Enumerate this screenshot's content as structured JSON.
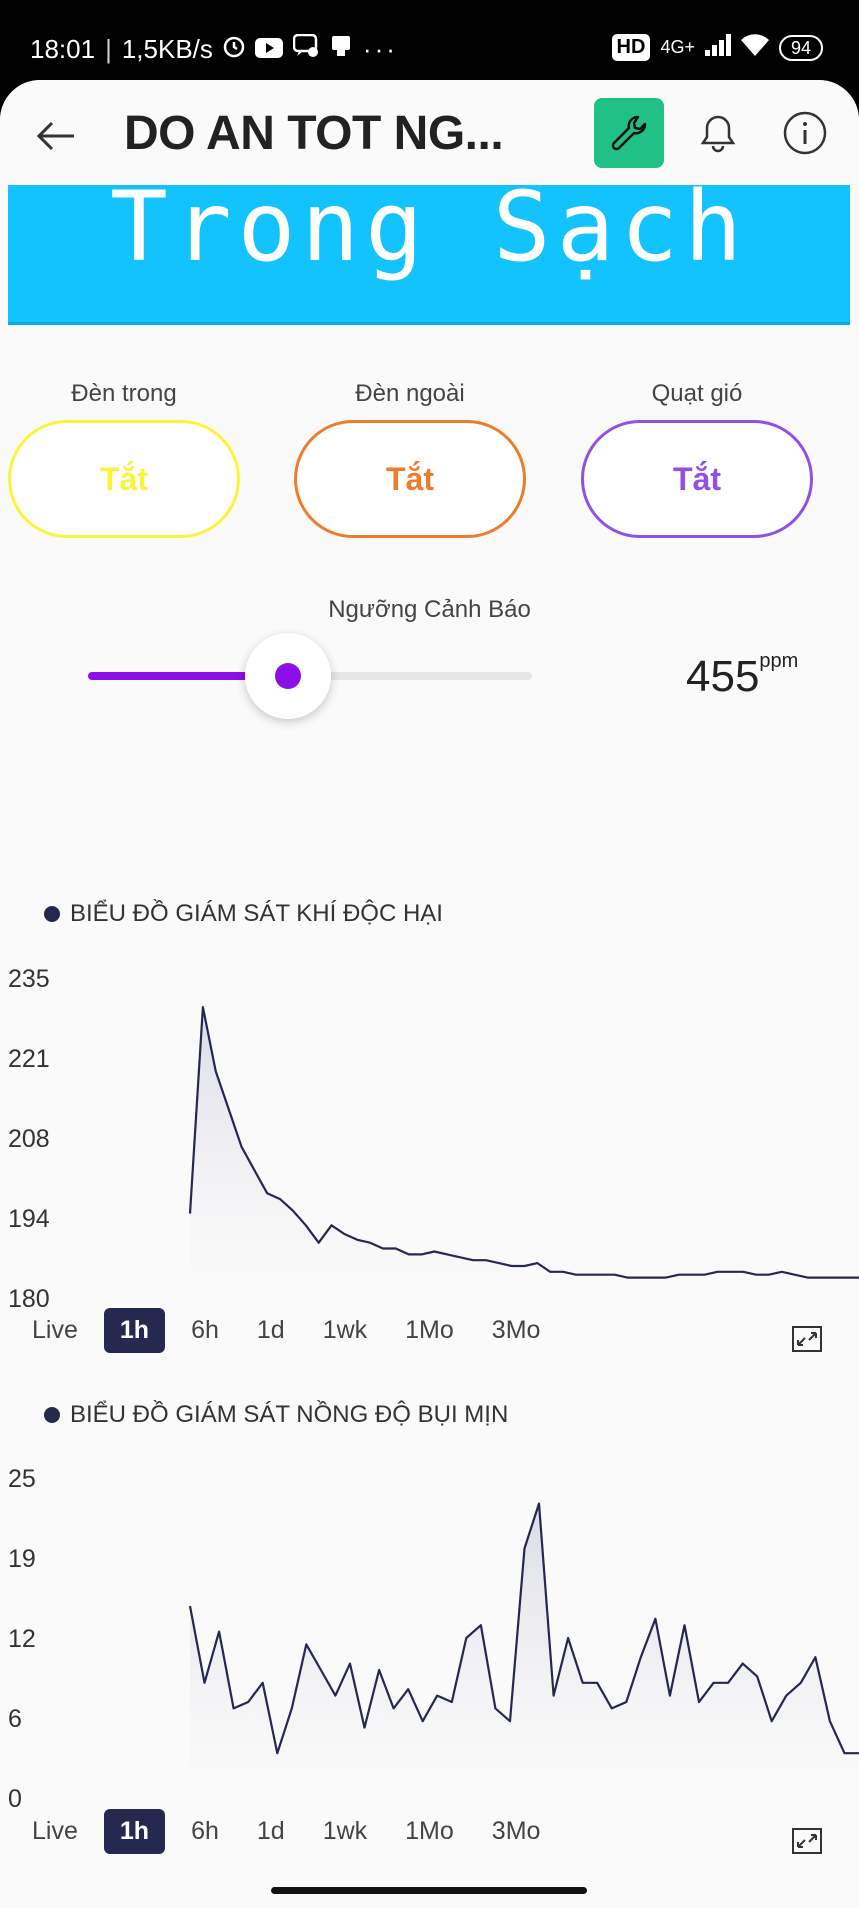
{
  "status_bar": {
    "time": "18:01",
    "net_speed": "1,5KB/s",
    "hd": "HD",
    "net_type": "4G+",
    "battery": "94"
  },
  "header": {
    "title": "DO AN TOT NG..."
  },
  "lcd": {
    "text": "Trong Sạch"
  },
  "toggles": [
    {
      "label": "Đèn trong",
      "state": "Tắt",
      "color": "#fdf43a"
    },
    {
      "label": "Đèn ngoài",
      "state": "Tắt",
      "color": "#ee7d2b"
    },
    {
      "label": "Quạt gió",
      "state": "Tắt",
      "color": "#9151e6"
    }
  ],
  "slider": {
    "label": "Ngưỡng Cảnh Báo",
    "value": "455",
    "unit": "ppm",
    "fill_fraction": 0.45,
    "color": "#8b0fe6"
  },
  "time_tabs": [
    "Live",
    "1h",
    "6h",
    "1d",
    "1wk",
    "1Mo",
    "3Mo"
  ],
  "active_tab": "1h",
  "chart_data": [
    {
      "type": "area",
      "title": "BIỂU ĐỒ GIÁM SÁT KHÍ ĐỘC HẠI",
      "y_ticks": [
        "235",
        "221",
        "208",
        "194",
        "180"
      ],
      "ylim": [
        180,
        235
      ],
      "color": "#25284f",
      "values": [
        194.5,
        230,
        219,
        212.5,
        206,
        202,
        198,
        197,
        195,
        192.5,
        189.5,
        192.5,
        191,
        190,
        189.5,
        188.5,
        188.5,
        187.5,
        187.5,
        188,
        187.5,
        187,
        186.5,
        186.5,
        186,
        185.5,
        185.5,
        186,
        184.5,
        184.5,
        184,
        184,
        184,
        184,
        183.5,
        183.5,
        183.5,
        183.5,
        184,
        184,
        184,
        184.5,
        184.5,
        184.5,
        184,
        184,
        184.5,
        184,
        183.5,
        183.5,
        183.5,
        183.5,
        183.5
      ]
    },
    {
      "type": "area",
      "title": "BIỂU ĐỒ GIÁM SÁT NỒNG ĐỘ BỤI MỊN",
      "y_ticks": [
        "25",
        "19",
        "12",
        "6",
        "0"
      ],
      "ylim": [
        0,
        25
      ],
      "color": "#25284f",
      "values": [
        15,
        9,
        13,
        7,
        7.5,
        9,
        3.5,
        7,
        12,
        10,
        8,
        10.5,
        5.5,
        10,
        7,
        8.5,
        6,
        8,
        7.5,
        12.5,
        13.5,
        7,
        6,
        19.5,
        23,
        8,
        12.5,
        9,
        9,
        7,
        7.5,
        11,
        14,
        8,
        13.5,
        7.5,
        9,
        9,
        10.5,
        9.5,
        6,
        8,
        9,
        11,
        6,
        3.5,
        3.5
      ]
    }
  ]
}
